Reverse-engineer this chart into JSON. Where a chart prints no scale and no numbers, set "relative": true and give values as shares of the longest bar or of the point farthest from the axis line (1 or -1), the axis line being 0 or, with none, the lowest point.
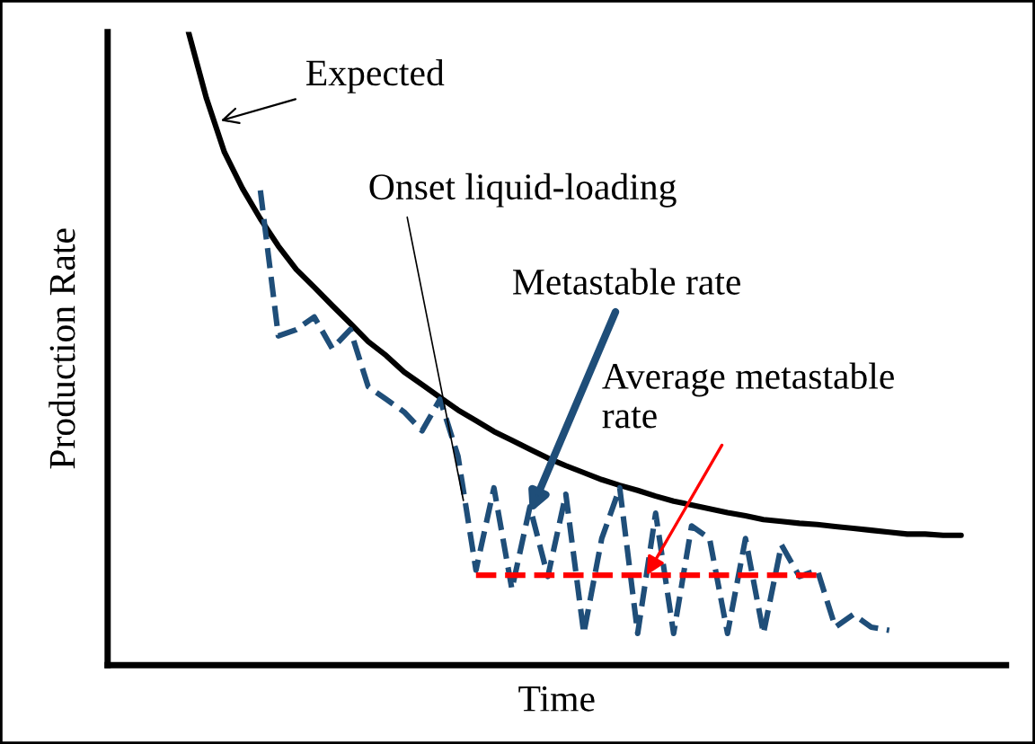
{
  "chart_data": {
    "type": "line",
    "relative": true,
    "xlabel": "Time",
    "ylabel": "Production Rate",
    "categories": [
      null,
      null,
      null,
      null,
      null,
      null,
      null,
      null,
      null,
      null,
      null,
      null,
      null,
      null,
      null,
      null,
      null,
      null,
      null,
      null,
      null,
      null,
      null,
      null,
      null,
      null,
      null,
      null,
      null,
      null,
      null,
      null,
      null,
      null,
      null,
      null,
      null,
      null,
      null,
      null,
      null,
      null,
      null,
      null,
      null,
      null,
      null,
      null,
      null,
      null
    ],
    "series": [
      {
        "color": "#000000",
        "line_style": "solid",
        "values": [
          null,
          null,
          null,
          null,
          1.0,
          0.895,
          0.81,
          0.753,
          0.705,
          0.662,
          0.625,
          0.597,
          0.568,
          0.54,
          0.511,
          0.489,
          0.463,
          0.443,
          0.423,
          0.403,
          0.386,
          0.369,
          0.355,
          0.341,
          0.327,
          0.315,
          0.304,
          0.293,
          0.284,
          0.276,
          0.267,
          0.259,
          0.253,
          0.247,
          0.241,
          0.236,
          0.23,
          0.227,
          0.224,
          0.222,
          0.219,
          0.216,
          0.213,
          0.21,
          0.207,
          0.207,
          0.205,
          0.205,
          null,
          null
        ]
      },
      {
        "color": "#1f4e79",
        "line_style": "dashed",
        "values": [
          null,
          null,
          null,
          null,
          null,
          null,
          null,
          null,
          0.75,
          0.52,
          0.53,
          0.55,
          0.5,
          0.53,
          0.44,
          0.42,
          0.4,
          0.37,
          0.42,
          0.33,
          0.15,
          0.28,
          0.12,
          0.25,
          0.14,
          0.27,
          0.05,
          0.2,
          0.28,
          0.05,
          0.24,
          0.05,
          0.22,
          0.2,
          0.05,
          0.2,
          0.05,
          0.19,
          0.14,
          0.15,
          0.06,
          0.08,
          0.06,
          0.055,
          null,
          null,
          null,
          null,
          null,
          null
        ]
      },
      {
        "color": "#ff0000",
        "line_style": "dashed",
        "values": [
          null,
          null,
          null,
          null,
          null,
          null,
          null,
          null,
          null,
          null,
          null,
          null,
          null,
          null,
          null,
          null,
          null,
          null,
          null,
          null,
          0.142,
          0.142,
          0.142,
          0.142,
          0.142,
          0.142,
          0.142,
          0.142,
          0.142,
          0.142,
          0.142,
          0.142,
          0.142,
          0.142,
          0.142,
          0.142,
          0.142,
          0.142,
          0.142,
          0.142,
          null,
          null,
          null,
          null,
          null,
          null,
          null,
          null,
          null,
          null
        ]
      }
    ],
    "annotations": [
      "Expected",
      "Onset liquid-loading",
      "Metastable rate",
      "Average metastable\nrate"
    ]
  }
}
